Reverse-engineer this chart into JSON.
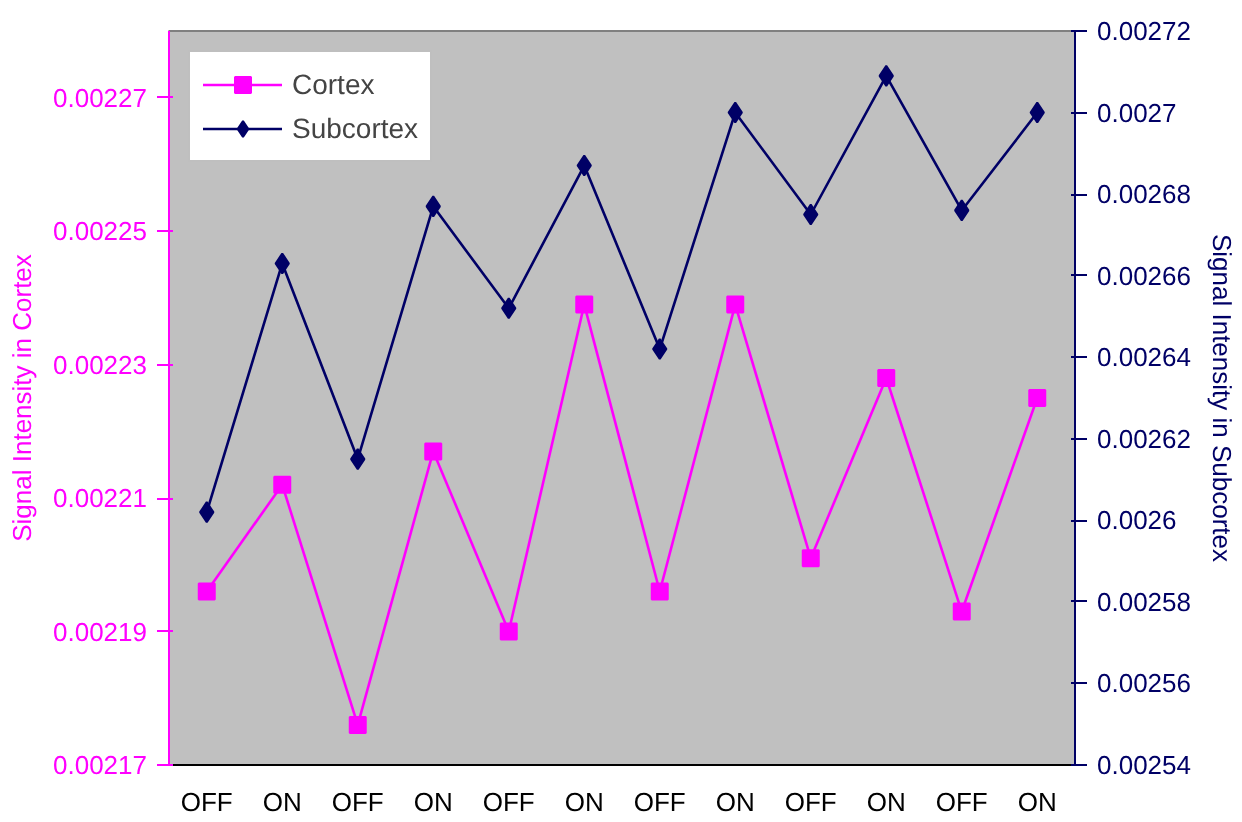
{
  "chart_data": {
    "type": "line",
    "categories": [
      "OFF",
      "ON",
      "OFF",
      "ON",
      "OFF",
      "ON",
      "OFF",
      "ON",
      "OFF",
      "ON",
      "OFF",
      "ON"
    ],
    "ylabel": "Signal Intensity in Cortex",
    "y2label": "Signal Intensity in Subcortex",
    "ylim": [
      0.00217,
      0.00228
    ],
    "yticks": [
      0.00217,
      0.00219,
      0.00221,
      0.00223,
      0.00225,
      0.00227
    ],
    "y2lim": [
      0.00254,
      0.00272
    ],
    "y2ticks": [
      0.00254,
      0.00256,
      0.00258,
      0.0026,
      0.00262,
      0.00264,
      0.00266,
      0.00268,
      0.0027,
      0.00272
    ],
    "legend": "top left",
    "grid": false,
    "series": [
      {
        "name": "Cortex",
        "color": "#ff00ff",
        "marker": "square",
        "values": [
          0.002196,
          0.002212,
          0.002176,
          0.002217,
          0.00219,
          0.002239,
          0.002196,
          0.002239,
          0.002201,
          0.002228,
          0.002193,
          0.002225
        ]
      },
      {
        "name": "Subcortex",
        "color": "#000066",
        "marker": "diamond",
        "axis": "y2",
        "values": [
          0.002602,
          0.002663,
          0.002615,
          0.002677,
          0.002652,
          0.002687,
          0.002642,
          0.0027,
          0.002675,
          0.002709,
          0.002676,
          0.0027
        ]
      }
    ]
  }
}
